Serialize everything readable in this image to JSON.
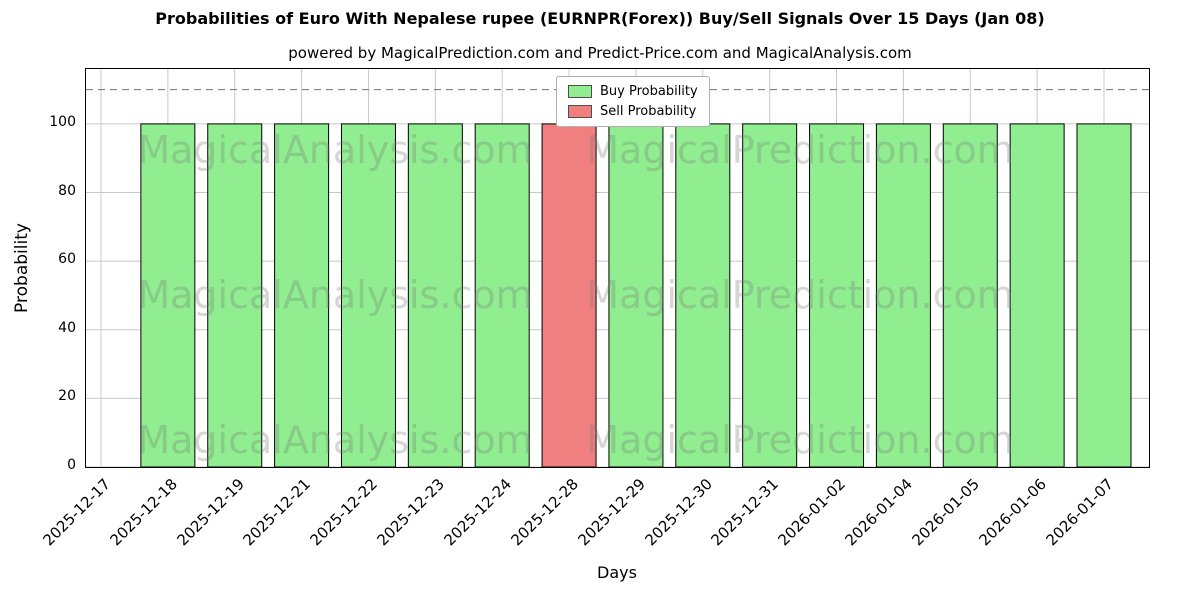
{
  "chart_data": {
    "type": "bar",
    "title": "Probabilities of Euro With Nepalese rupee (EURNPR(Forex)) Buy/Sell Signals Over 15 Days (Jan 08)",
    "subtitle": "powered by MagicalPrediction.com and Predict-Price.com and MagicalAnalysis.com",
    "xlabel": "Days",
    "ylabel": "Probability",
    "ylim": [
      0,
      116
    ],
    "yticks": [
      0,
      20,
      40,
      60,
      80,
      100
    ],
    "dashed_line_y": 110,
    "grid": true,
    "legend_position": "top-center",
    "categories": [
      "2025-12-17",
      "2025-12-18",
      "2025-12-19",
      "2025-12-21",
      "2025-12-22",
      "2025-12-23",
      "2025-12-24",
      "2025-12-28",
      "2025-12-29",
      "2025-12-30",
      "2025-12-31",
      "2026-01-02",
      "2026-01-04",
      "2026-01-05",
      "2026-01-06",
      "2026-01-07"
    ],
    "series": [
      {
        "name": "Buy Probability",
        "color": "#90ee90",
        "values": [
          null,
          100,
          100,
          100,
          100,
          100,
          100,
          null,
          100,
          100,
          100,
          100,
          100,
          100,
          100,
          100
        ]
      },
      {
        "name": "Sell Probability",
        "color": "#f08080",
        "values": [
          null,
          null,
          null,
          null,
          null,
          null,
          null,
          100,
          null,
          null,
          null,
          null,
          null,
          null,
          null,
          null
        ]
      }
    ],
    "colors": {
      "bar_edge": "#000000",
      "grid": "#c8c8c8",
      "dashed": "#808080"
    },
    "watermarks": [
      "MagicalAnalysis.com",
      "MagicalPrediction.com"
    ]
  }
}
